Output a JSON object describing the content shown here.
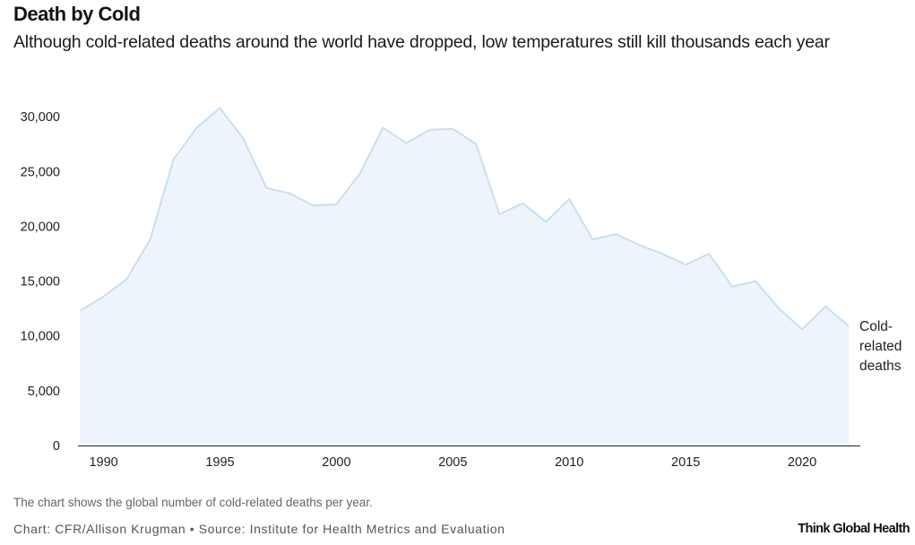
{
  "header": {
    "title": "Death by Cold",
    "subtitle": "Although cold-related deaths around the world have dropped, low temperatures still kill thousands each year"
  },
  "footer": {
    "note": "The chart shows the global number of cold-related deaths per year.",
    "credit": "Chart: CFR/Allison Krugman • Source: Institute for Health Metrics and Evaluation",
    "brand": "Think Global Health"
  },
  "colors": {
    "line": "#c9dff0",
    "area": "#eef4fc",
    "axis": "#222222",
    "text": "#222222"
  },
  "chart_data": {
    "type": "area",
    "title": "",
    "xlabel": "",
    "ylabel": "",
    "x": [
      1989,
      1990,
      1991,
      1992,
      1993,
      1994,
      1995,
      1996,
      1997,
      1998,
      1999,
      2000,
      2001,
      2002,
      2003,
      2004,
      2005,
      2006,
      2007,
      2008,
      2009,
      2010,
      2011,
      2012,
      2013,
      2014,
      2015,
      2016,
      2017,
      2018,
      2019,
      2020,
      2021,
      2022
    ],
    "series": [
      {
        "name": "Cold-related deaths",
        "label_lines": [
          "Cold-",
          "related",
          "deaths"
        ],
        "values": [
          12300,
          13600,
          15200,
          18800,
          26100,
          29000,
          30800,
          28000,
          23500,
          23000,
          21900,
          22000,
          24800,
          29000,
          27600,
          28800,
          28900,
          27500,
          21100,
          22100,
          20400,
          22500,
          18800,
          19300,
          18300,
          17500,
          16500,
          17500,
          14500,
          15000,
          12500,
          10600,
          12700,
          10900
        ]
      }
    ],
    "xlim": [
      1988.9,
      2022.5
    ],
    "ylim": [
      0,
      31000
    ],
    "x_ticks": [
      1990,
      1995,
      2000,
      2005,
      2010,
      2015,
      2020
    ],
    "x_tick_labels": [
      "1990",
      "1995",
      "2000",
      "2005",
      "2010",
      "2015",
      "2020"
    ],
    "y_ticks": [
      0,
      5000,
      10000,
      15000,
      20000,
      25000,
      30000
    ],
    "y_tick_labels": [
      "0",
      "5,000",
      "10,000",
      "15,000",
      "20,000",
      "25,000",
      "30,000"
    ],
    "grid": false,
    "legend": "end-of-line label"
  }
}
